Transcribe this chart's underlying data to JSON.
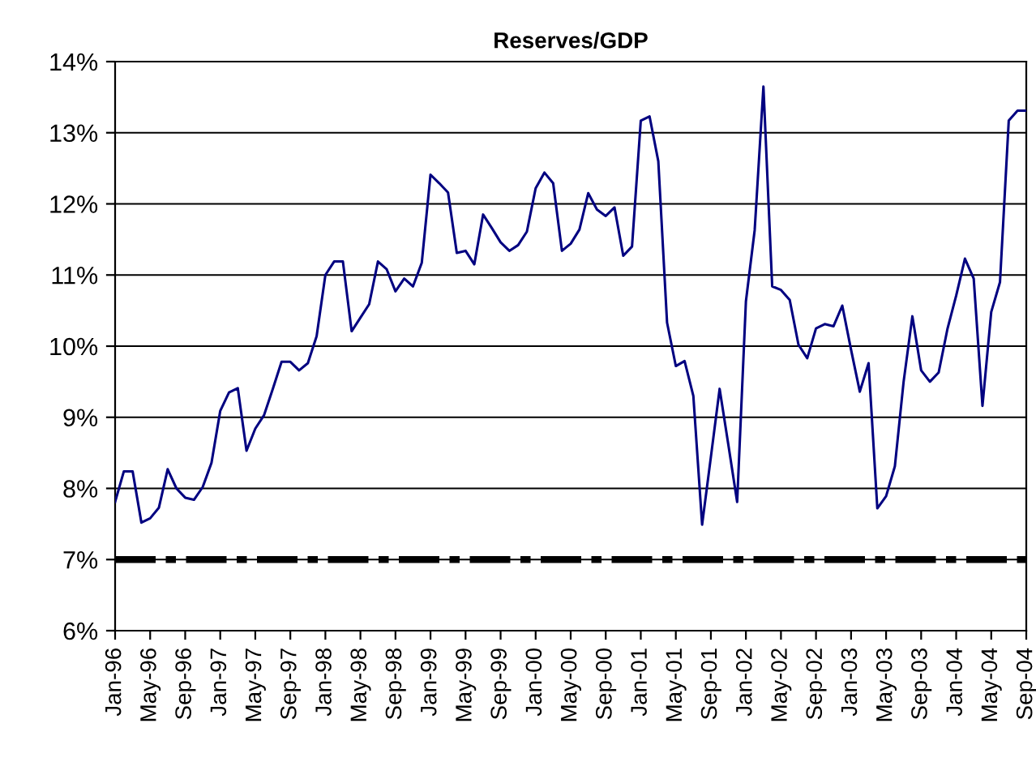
{
  "chart_data": {
    "type": "line",
    "title": "Reserves/GDP",
    "categories": [
      "Jan-96",
      null,
      null,
      null,
      "May-96",
      null,
      null,
      null,
      "Sep-96",
      null,
      null,
      null,
      "Jan-97",
      null,
      null,
      null,
      "May-97",
      null,
      null,
      null,
      "Sep-97",
      null,
      null,
      null,
      "Jan-98",
      null,
      null,
      null,
      "May-98",
      null,
      null,
      null,
      "Sep-98",
      null,
      null,
      null,
      "Jan-99",
      null,
      null,
      null,
      "May-99",
      null,
      null,
      null,
      "Sep-99",
      null,
      null,
      null,
      "Jan-00",
      null,
      null,
      null,
      "May-00",
      null,
      null,
      null,
      "Sep-00",
      null,
      null,
      null,
      "Jan-01",
      null,
      null,
      null,
      "May-01",
      null,
      null,
      null,
      "Sep-01",
      null,
      null,
      null,
      "Jan-02",
      null,
      null,
      null,
      "May-02",
      null,
      null,
      null,
      "Sep-02",
      null,
      null,
      null,
      "Jan-03",
      null,
      null,
      null,
      "May-03",
      null,
      null,
      null,
      "Sep-03",
      null,
      null,
      null,
      "Jan-04",
      null,
      null,
      null,
      "May-04",
      null,
      null,
      null,
      "Sep-04"
    ],
    "series": [
      {
        "color": "#000080",
        "values": [
          7.81,
          8.24,
          8.24,
          7.52,
          7.58,
          7.73,
          8.27,
          8.0,
          7.87,
          7.84,
          8.02,
          8.36,
          9.09,
          9.35,
          9.41,
          8.53,
          8.84,
          9.03,
          9.4,
          9.78,
          9.78,
          9.66,
          9.76,
          10.14,
          11.0,
          11.19,
          11.19,
          10.21,
          10.4,
          10.59,
          11.19,
          11.08,
          10.77,
          10.95,
          10.84,
          11.17,
          12.41,
          12.29,
          12.16,
          11.31,
          11.34,
          11.15,
          11.85,
          11.66,
          11.46,
          11.34,
          11.42,
          11.61,
          12.22,
          12.44,
          12.29,
          11.34,
          11.44,
          11.64,
          12.15,
          11.92,
          11.83,
          11.95,
          11.27,
          11.4,
          13.17,
          13.23,
          12.6,
          10.33,
          9.72,
          9.79,
          9.3,
          7.49,
          8.44,
          9.4,
          8.61,
          7.81,
          10.63,
          11.63,
          13.65,
          10.84,
          10.79,
          10.65,
          10.02,
          9.83,
          10.25,
          10.31,
          10.28,
          10.57,
          9.95,
          9.36,
          9.76,
          7.72,
          7.89,
          8.31,
          9.5,
          10.42,
          9.66,
          9.5,
          9.63,
          10.24,
          10.71,
          11.23,
          10.95,
          9.16,
          10.48,
          10.9,
          13.17,
          13.31,
          13.31
        ]
      }
    ],
    "ylim": [
      6,
      14
    ],
    "yticks": [
      {
        "value": 6,
        "label": "6%"
      },
      {
        "value": 7,
        "label": "7%"
      },
      {
        "value": 8,
        "label": "8%"
      },
      {
        "value": 9,
        "label": "9%"
      },
      {
        "value": 10,
        "label": "10%"
      },
      {
        "value": 11,
        "label": "11%"
      },
      {
        "value": 12,
        "label": "12%"
      },
      {
        "value": 13,
        "label": "13%"
      },
      {
        "value": 14,
        "label": "14%"
      }
    ],
    "grid": "y",
    "ref_lines": [
      {
        "axis": "y",
        "value": 7,
        "color": "#000000",
        "line_style": "dashdot"
      }
    ]
  }
}
